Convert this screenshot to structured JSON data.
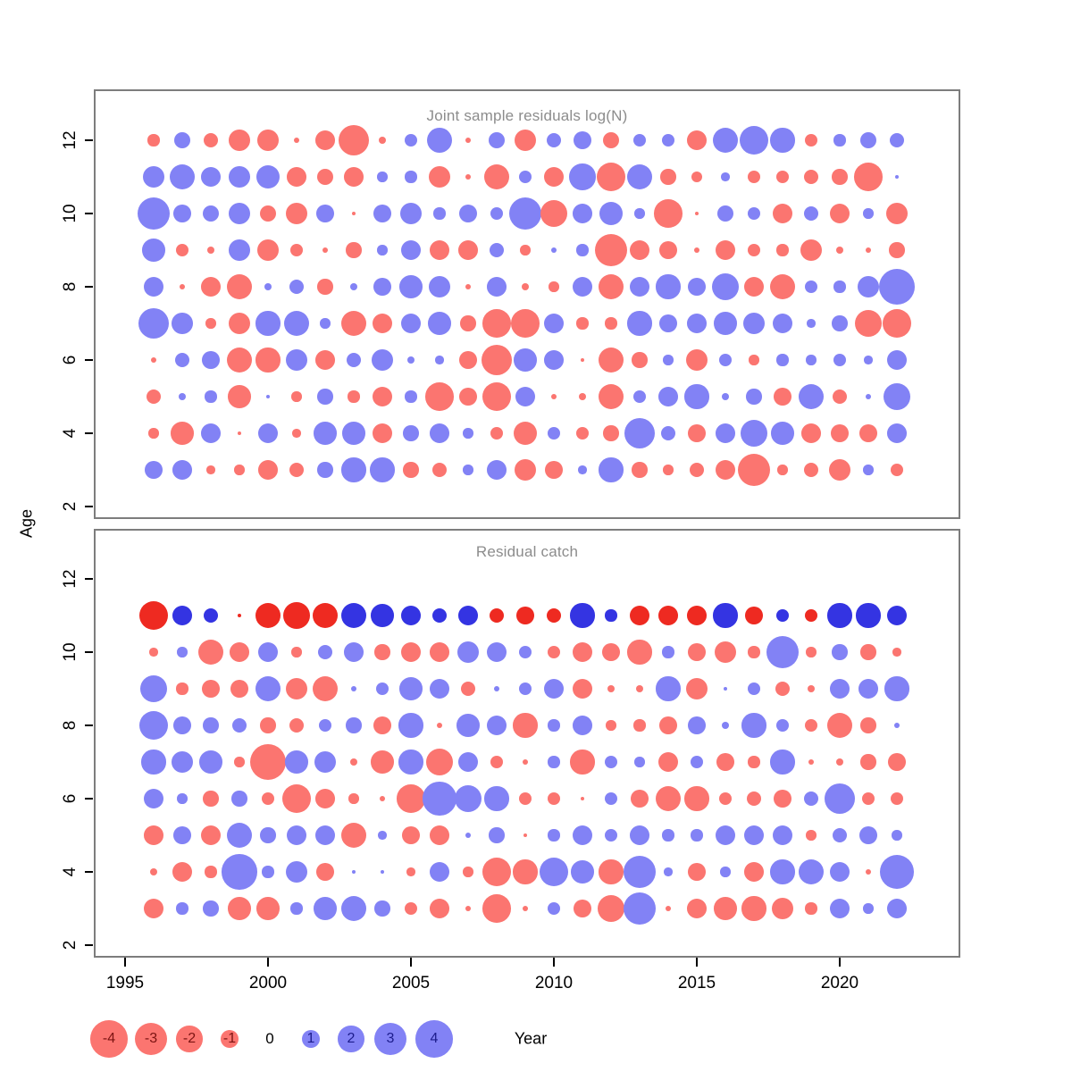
{
  "figure": {
    "y_axis": {
      "label": "Age",
      "ticks": [
        2,
        4,
        6,
        8,
        10,
        12
      ]
    },
    "x_axis": {
      "label": "Year",
      "ticks": [
        1995,
        2000,
        2005,
        2010,
        2015,
        2020
      ]
    },
    "legend": {
      "values": [
        -4,
        -3,
        -2,
        -1,
        0,
        1,
        2,
        3,
        4
      ]
    },
    "colors": {
      "negative": "#FB7570",
      "positive": "#8282F5",
      "negative_strong": "#EE2A21",
      "positive_strong": "#3434E2",
      "legend_negative_text": "#7c1412",
      "legend_positive_text": "#1c1c8c",
      "title_text": "#8c8c8c",
      "axis_text": "#000000",
      "panel_border": "#7d7d7d"
    }
  },
  "chart_data": [
    {
      "type": "bubble",
      "title": "Joint sample residuals log(N)",
      "xlabel": "Year",
      "ylabel": "Age",
      "x": [
        1996,
        1997,
        1998,
        1999,
        2000,
        2001,
        2002,
        2003,
        2004,
        2005,
        2006,
        2007,
        2008,
        2009,
        2010,
        2011,
        2012,
        2013,
        2014,
        2015,
        2016,
        2017,
        2018,
        2019,
        2020,
        2021,
        2022
      ],
      "ylim": [
        1.5,
        13
      ],
      "value_note": "sign: red negative / blue positive; bubble area ~ |value|",
      "series": [
        {
          "age": 12,
          "values": [
            -0.4,
            0.8,
            -0.6,
            -1.3,
            -1.3,
            -0.1,
            -1.1,
            -2.7,
            -0.15,
            0.5,
            1.8,
            -0.1,
            0.8,
            -1.4,
            0.6,
            1.0,
            -0.8,
            0.5,
            0.5,
            -1.1,
            1.9,
            2.5,
            1.7,
            -0.5,
            0.4,
            0.8,
            0.6
          ]
        },
        {
          "age": 11,
          "values": [
            1.4,
            1.9,
            1.1,
            1.3,
            1.6,
            -1.1,
            -0.8,
            -1.1,
            0.3,
            0.4,
            -1.4,
            -0.1,
            -1.9,
            0.5,
            -1.2,
            2.0,
            -2.5,
            1.9,
            -0.7,
            -0.35,
            0.2,
            -0.5,
            -0.5,
            -0.6,
            -0.7,
            -2.3,
            0.05
          ]
        },
        {
          "age": 10,
          "values": [
            3.0,
            0.9,
            0.8,
            1.4,
            -0.8,
            -1.4,
            0.9,
            -0.05,
            0.9,
            1.4,
            0.4,
            1.0,
            0.5,
            3.0,
            -2.1,
            1.1,
            1.6,
            0.3,
            -2.3,
            -0.05,
            0.8,
            0.5,
            -1.2,
            0.6,
            -1.2,
            0.3,
            -1.4
          ]
        },
        {
          "age": 9,
          "values": [
            1.5,
            -0.5,
            -0.15,
            1.3,
            -1.4,
            -0.5,
            -0.1,
            -0.7,
            0.3,
            1.2,
            -1.2,
            -1.1,
            0.6,
            -0.3,
            0.1,
            0.4,
            -3.0,
            -1.2,
            -0.9,
            -0.1,
            -1.2,
            -0.5,
            -0.4,
            -1.4,
            -0.15,
            -0.1,
            -0.7
          ]
        },
        {
          "age": 8,
          "values": [
            1.2,
            -0.1,
            -1.1,
            -1.9,
            0.15,
            0.6,
            -0.7,
            0.15,
            0.9,
            1.5,
            1.4,
            -0.1,
            1.1,
            -0.15,
            -0.3,
            1.2,
            -1.9,
            1.2,
            1.7,
            0.9,
            2.1,
            -1.2,
            -1.9,
            0.5,
            0.4,
            1.4,
            3.8
          ]
        },
        {
          "age": 7,
          "values": [
            2.8,
            1.3,
            -0.3,
            -1.4,
            1.7,
            1.9,
            0.3,
            -1.9,
            -1.2,
            1.2,
            1.5,
            -0.7,
            -2.3,
            -2.3,
            1.2,
            -0.4,
            -0.4,
            1.7,
            0.9,
            1.1,
            1.5,
            1.4,
            1.2,
            0.2,
            0.7,
            -2.1,
            -2.5
          ]
        },
        {
          "age": 6,
          "values": [
            -0.1,
            0.6,
            0.9,
            -1.9,
            -1.7,
            1.4,
            -1.1,
            0.6,
            1.4,
            0.15,
            0.2,
            -0.9,
            -2.8,
            1.5,
            1.1,
            -0.05,
            -1.9,
            -0.7,
            0.3,
            -1.4,
            0.5,
            -0.3,
            0.4,
            0.3,
            0.5,
            0.2,
            1.2
          ]
        },
        {
          "age": 5,
          "values": [
            -0.6,
            0.15,
            0.4,
            -1.5,
            0.05,
            -0.3,
            0.7,
            -0.4,
            -1.2,
            0.4,
            -2.3,
            -0.9,
            -2.5,
            1.2,
            -0.1,
            -0.15,
            -1.9,
            0.5,
            1.1,
            1.7,
            0.15,
            0.7,
            -0.9,
            1.9,
            -0.6,
            0.1,
            2.1
          ]
        },
        {
          "age": 4,
          "values": [
            -0.3,
            -1.5,
            1.1,
            -0.05,
            1.2,
            -0.2,
            1.5,
            1.5,
            -1.2,
            0.7,
            1.1,
            0.3,
            -0.5,
            -1.6,
            0.5,
            -0.5,
            -0.7,
            2.8,
            0.6,
            -0.9,
            1.1,
            2.1,
            1.5,
            -1.1,
            -0.9,
            -0.9,
            1.1
          ]
        },
        {
          "age": 3,
          "values": [
            0.9,
            1.1,
            -0.2,
            -0.3,
            -1.1,
            -0.6,
            0.7,
            1.7,
            1.7,
            -0.7,
            -0.6,
            0.3,
            1.1,
            -1.4,
            -0.9,
            0.2,
            1.7,
            -0.7,
            -0.3,
            -0.6,
            -1.2,
            -3.0,
            -0.3,
            -0.6,
            -1.4,
            0.3,
            -0.5
          ]
        }
      ]
    },
    {
      "type": "bubble",
      "title": "Residual catch",
      "xlabel": "Year",
      "ylabel": "Age",
      "x": [
        1996,
        1997,
        1998,
        1999,
        2000,
        2001,
        2002,
        2003,
        2004,
        2005,
        2006,
        2007,
        2008,
        2009,
        2010,
        2011,
        2012,
        2013,
        2014,
        2015,
        2016,
        2017,
        2018,
        2019,
        2020,
        2021,
        2022
      ],
      "ylim": [
        1.5,
        13
      ],
      "strong_color_ages": [
        11
      ],
      "series": [
        {
          "age": 11,
          "values": [
            -2.5,
            1.1,
            0.6,
            -0.05,
            -1.9,
            -2.1,
            -1.9,
            1.9,
            1.5,
            1.1,
            0.6,
            1.1,
            -0.6,
            -0.9,
            -0.6,
            1.7,
            0.4,
            -1.2,
            -1.1,
            -1.1,
            1.7,
            -0.9,
            0.5,
            -0.5,
            1.7,
            1.7,
            1.2
          ]
        },
        {
          "age": 10,
          "values": [
            -0.2,
            0.3,
            -1.9,
            -1.1,
            1.2,
            -0.3,
            0.6,
            1.1,
            -0.7,
            -1.2,
            -1.1,
            1.4,
            1.2,
            0.5,
            -0.5,
            -1.2,
            -0.9,
            -1.7,
            0.4,
            -0.9,
            -1.4,
            -0.4,
            3.0,
            -0.3,
            0.7,
            -0.7,
            -0.2
          ]
        },
        {
          "age": 9,
          "values": [
            2.1,
            -0.4,
            -0.9,
            -0.9,
            1.9,
            -1.4,
            -1.9,
            0.1,
            0.5,
            1.5,
            1.2,
            -0.6,
            0.1,
            0.5,
            1.2,
            -1.2,
            -0.15,
            -0.15,
            1.7,
            -1.4,
            0.05,
            0.5,
            -0.6,
            -0.15,
            1.1,
            1.1,
            1.7
          ]
        },
        {
          "age": 8,
          "values": [
            2.5,
            0.9,
            0.7,
            0.6,
            -0.7,
            -0.6,
            0.5,
            0.7,
            -0.9,
            1.7,
            -0.1,
            1.5,
            1.2,
            -1.7,
            0.4,
            1.1,
            -0.3,
            -0.4,
            -0.9,
            0.9,
            0.15,
            1.7,
            0.5,
            -0.5,
            -1.9,
            -0.7,
            0.1
          ]
        },
        {
          "age": 7,
          "values": [
            1.7,
            1.4,
            1.5,
            -0.3,
            -3.8,
            1.5,
            1.4,
            -0.15,
            -1.5,
            1.7,
            -2.1,
            1.2,
            -0.5,
            -0.1,
            0.4,
            -1.7,
            0.5,
            0.3,
            -1.2,
            0.5,
            -0.9,
            -0.4,
            1.7,
            -0.1,
            -0.15,
            -0.7,
            -0.9
          ]
        },
        {
          "age": 6,
          "values": [
            1.2,
            0.3,
            -0.7,
            0.7,
            -0.5,
            -2.5,
            -1.1,
            -0.3,
            -0.1,
            -2.3,
            3.2,
            2.1,
            1.7,
            -0.5,
            -0.5,
            -0.05,
            0.5,
            -0.9,
            -1.9,
            -1.7,
            -0.5,
            -0.6,
            -0.9,
            0.6,
            2.8,
            -0.5,
            -0.5
          ]
        },
        {
          "age": 5,
          "values": [
            -1.1,
            0.9,
            -1.2,
            1.9,
            0.7,
            1.2,
            1.2,
            -1.9,
            0.2,
            -0.9,
            -1.1,
            0.1,
            0.7,
            -0.05,
            0.4,
            1.2,
            0.5,
            1.1,
            0.4,
            0.4,
            1.2,
            1.2,
            1.2,
            -0.3,
            0.6,
            0.9,
            0.3
          ]
        },
        {
          "age": 4,
          "values": [
            -0.15,
            -1.2,
            -0.4,
            3.6,
            0.4,
            1.4,
            -0.9,
            0.05,
            0.05,
            -0.2,
            1.2,
            -0.3,
            -2.5,
            -1.7,
            2.5,
            1.5,
            -1.7,
            3.0,
            0.2,
            -0.9,
            0.3,
            -1.1,
            1.7,
            1.9,
            1.2,
            -0.1,
            3.3
          ]
        },
        {
          "age": 3,
          "values": [
            -1.2,
            0.4,
            0.7,
            -1.5,
            -1.5,
            0.4,
            1.5,
            1.9,
            0.7,
            -0.5,
            -1.1,
            -0.1,
            -2.3,
            -0.1,
            0.5,
            -0.9,
            -2.1,
            3.0,
            -0.1,
            -1.1,
            -1.5,
            -1.7,
            -1.4,
            -0.4,
            1.2,
            0.3,
            1.1
          ]
        }
      ]
    }
  ]
}
